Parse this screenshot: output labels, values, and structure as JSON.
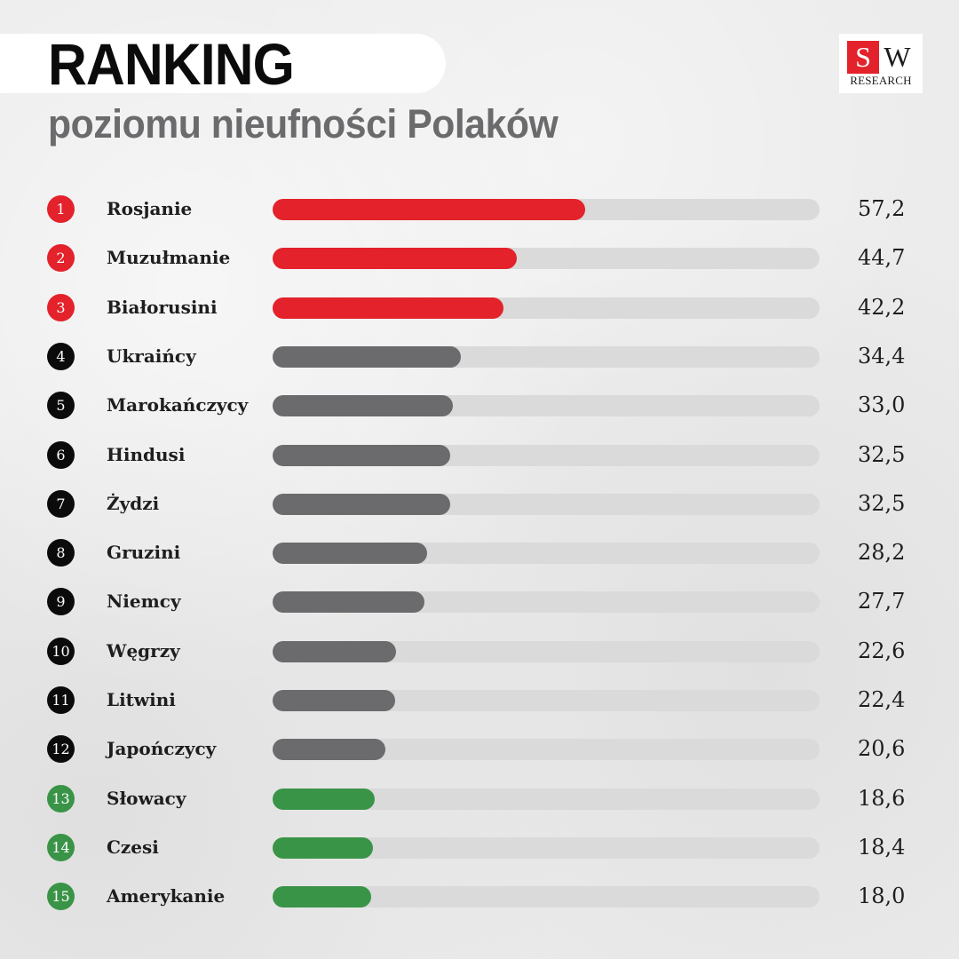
{
  "header": {
    "title": "RANKING",
    "subtitle": "poziomu nieufności Polaków"
  },
  "logo": {
    "letter_s": "S",
    "letter_w": "W",
    "subtitle": "RESEARCH",
    "brand_color": "#e3222b"
  },
  "colors": {
    "top": "#e3222b",
    "middle": "#6b6b6d",
    "bottom": "#3a9447",
    "middle_rank": "#0b0b0b",
    "track": "#dadada"
  },
  "chart_data": {
    "type": "bar",
    "orientation": "horizontal",
    "title": "RANKING",
    "subtitle": "poziomu nieufności Polaków",
    "xlim": [
      0,
      100
    ],
    "grid": false,
    "categories": [
      "Rosjanie",
      "Muzułmanie",
      "Białorusini",
      "Ukraińcy",
      "Marokańczycy",
      "Hindusi",
      "Żydzi",
      "Gruzini",
      "Niemcy",
      "Węgrzy",
      "Litwini",
      "Japończycy",
      "Słowacy",
      "Czesi",
      "Amerykanie"
    ],
    "ranks": [
      "1",
      "2",
      "3",
      "4",
      "5",
      "6",
      "7",
      "8",
      "9",
      "10",
      "11",
      "12",
      "13",
      "14",
      "15"
    ],
    "values": [
      57.2,
      44.7,
      42.2,
      34.4,
      33.0,
      32.5,
      32.5,
      28.2,
      27.7,
      22.6,
      22.4,
      20.6,
      18.6,
      18.4,
      18.0
    ],
    "value_labels": [
      "57,2",
      "44,7",
      "42,2",
      "34,4",
      "33,0",
      "32,5",
      "32,5",
      "28,2",
      "27,7",
      "22,6",
      "22,4",
      "20,6",
      "18,6",
      "18,4",
      "18,0"
    ],
    "groups": [
      "top",
      "top",
      "top",
      "middle",
      "middle",
      "middle",
      "middle",
      "middle",
      "middle",
      "middle",
      "middle",
      "middle",
      "bottom",
      "bottom",
      "bottom"
    ]
  }
}
